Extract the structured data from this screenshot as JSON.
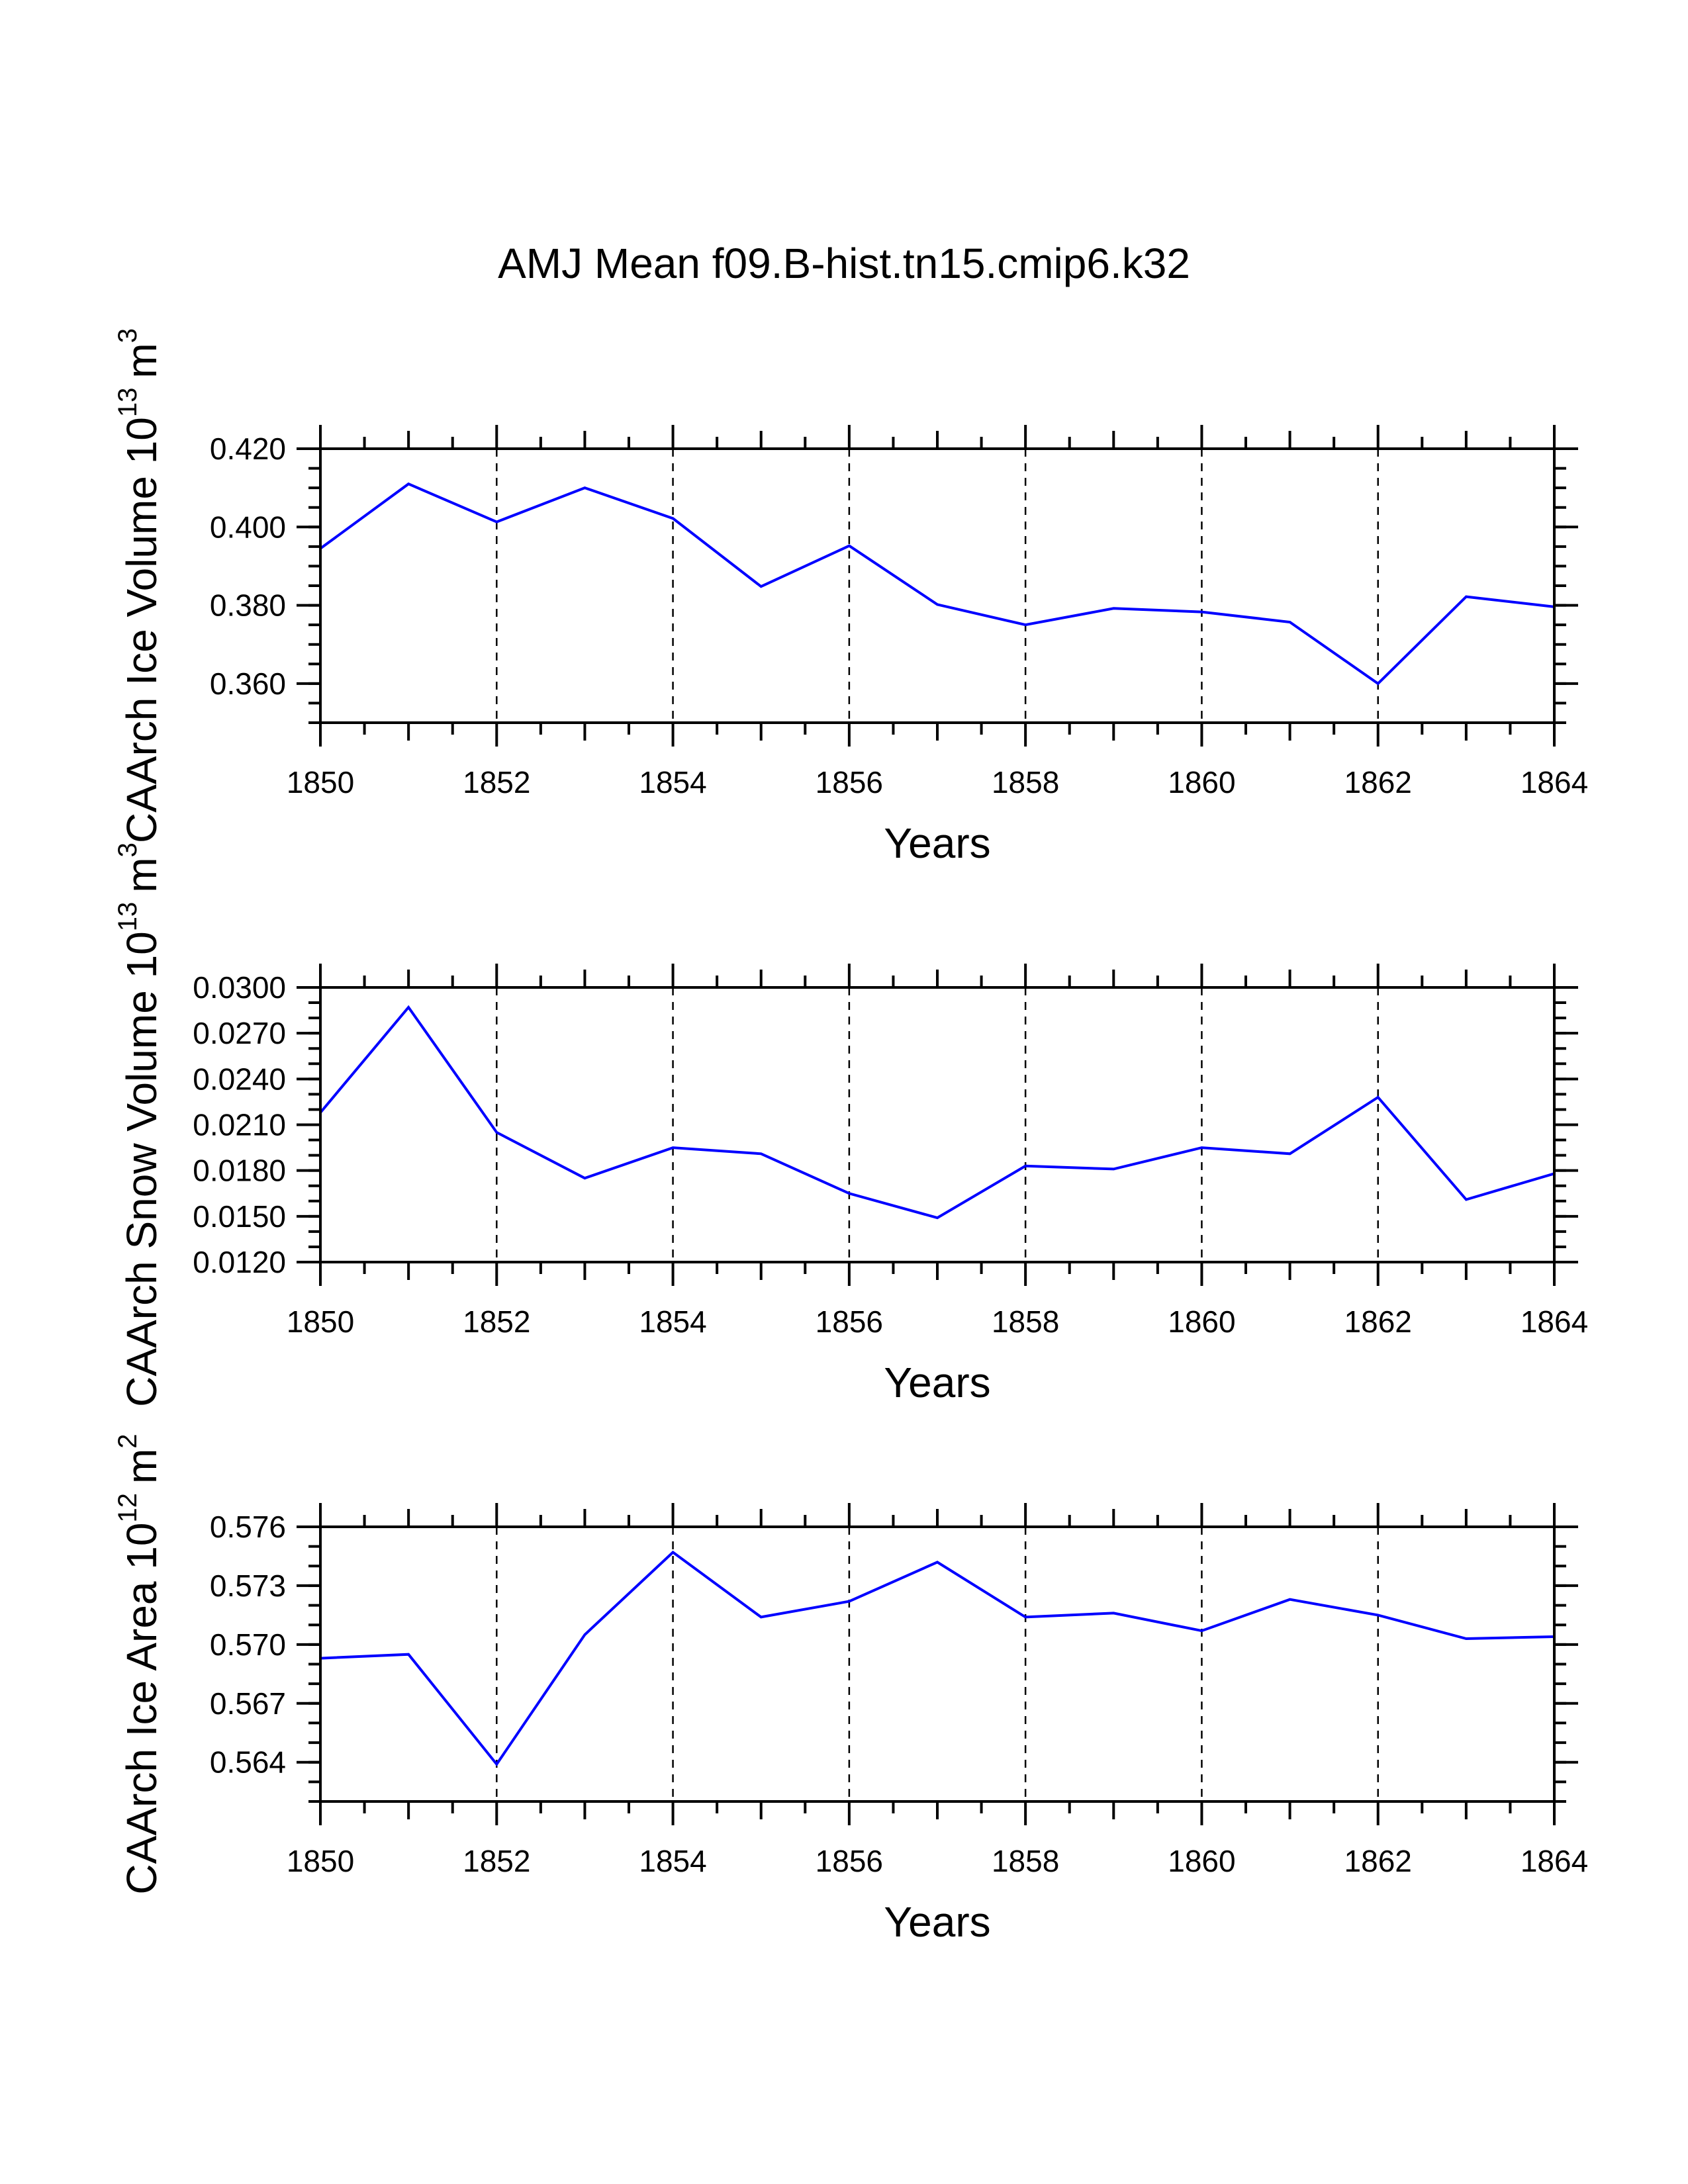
{
  "title": "AMJ Mean f09.B-hist.tn15.cmip6.k32",
  "colors": {
    "line": "#0000ff",
    "axis": "#000000",
    "grid": "#000000"
  },
  "chart_data": [
    {
      "type": "line",
      "ylabel_main": "CAArch Ice Volume 10",
      "ylabel_exp": "13",
      "ylabel_unit": "m",
      "ylabel_unit_exp": "3",
      "xlabel": "Years",
      "xlim": [
        1850,
        1864
      ],
      "ylim": [
        0.35,
        0.42
      ],
      "xticks": [
        "1850",
        "1852",
        "1854",
        "1856",
        "1858",
        "1860",
        "1862",
        "1864"
      ],
      "yticks": [
        "0.360",
        "0.380",
        "0.400",
        "0.420"
      ],
      "ytick_values": [
        0.36,
        0.38,
        0.4,
        0.42
      ],
      "yminor_step": 0.005,
      "x": [
        1850,
        1851,
        1852,
        1853,
        1854,
        1855,
        1856,
        1857,
        1858,
        1859,
        1860,
        1861,
        1862,
        1863,
        1864
      ],
      "values": [
        0.3945,
        0.411,
        0.4013,
        0.41,
        0.4022,
        0.3848,
        0.3952,
        0.3802,
        0.375,
        0.3792,
        0.3783,
        0.3757,
        0.36,
        0.3822,
        0.3796
      ]
    },
    {
      "type": "line",
      "ylabel_main": "CAArch Snow Volume 10",
      "ylabel_exp": "13",
      "ylabel_unit": "m",
      "ylabel_unit_exp": "3",
      "xlabel": "Years",
      "xlim": [
        1850,
        1864
      ],
      "ylim": [
        0.012,
        0.03
      ],
      "xticks": [
        "1850",
        "1852",
        "1854",
        "1856",
        "1858",
        "1860",
        "1862",
        "1864"
      ],
      "yticks": [
        "0.0120",
        "0.0150",
        "0.0180",
        "0.0210",
        "0.0240",
        "0.0270",
        "0.0300"
      ],
      "ytick_values": [
        0.012,
        0.015,
        0.018,
        0.021,
        0.024,
        0.027,
        0.03
      ],
      "yminor_step": 0.001,
      "x": [
        1850,
        1851,
        1852,
        1853,
        1854,
        1855,
        1856,
        1857,
        1858,
        1859,
        1860,
        1861,
        1862,
        1863,
        1864
      ],
      "values": [
        0.0218,
        0.0287,
        0.0205,
        0.0175,
        0.0195,
        0.0191,
        0.0165,
        0.0149,
        0.0183,
        0.0181,
        0.0195,
        0.0191,
        0.0228,
        0.0161,
        0.0178
      ]
    },
    {
      "type": "line",
      "ylabel_main": "CAArch Ice Area 10",
      "ylabel_exp": "12",
      "ylabel_unit": "m",
      "ylabel_unit_exp": "2",
      "xlabel": "Years",
      "xlim": [
        1850,
        1864
      ],
      "ylim": [
        0.562,
        0.576
      ],
      "xticks": [
        "1850",
        "1852",
        "1854",
        "1856",
        "1858",
        "1860",
        "1862",
        "1864"
      ],
      "yticks": [
        "0.564",
        "0.567",
        "0.570",
        "0.573",
        "0.576"
      ],
      "ytick_values": [
        0.564,
        0.567,
        0.57,
        0.573,
        0.576
      ],
      "yminor_step": 0.001,
      "x": [
        1850,
        1851,
        1852,
        1853,
        1854,
        1855,
        1856,
        1857,
        1858,
        1859,
        1860,
        1861,
        1862,
        1863,
        1864
      ],
      "values": [
        0.5693,
        0.5695,
        0.5639,
        0.5705,
        0.5747,
        0.5714,
        0.5722,
        0.5742,
        0.5714,
        0.5716,
        0.5707,
        0.5723,
        0.5715,
        0.5703,
        0.5704
      ]
    }
  ]
}
